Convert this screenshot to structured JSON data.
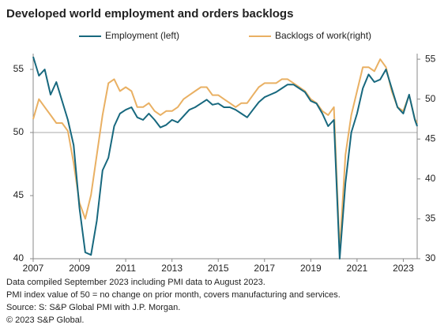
{
  "chart_data": {
    "type": "line",
    "title": "Developed world employment and orders backlogs",
    "notes": [
      "Data compiled September 2023 including PMI data to August 2023.",
      "PMI index value of 50 = no change on prior month, covers manufacturing and services.",
      "Source: S: S&P Global PMI with J.P. Morgan.",
      "© 2023 S&P Global."
    ],
    "x": [
      2007,
      2007.25,
      2007.5,
      2007.75,
      2008,
      2008.25,
      2008.5,
      2008.75,
      2009,
      2009.25,
      2009.5,
      2009.75,
      2010,
      2010.25,
      2010.5,
      2010.75,
      2011,
      2011.25,
      2011.5,
      2011.75,
      2012,
      2012.25,
      2012.5,
      2012.75,
      2013,
      2013.25,
      2013.5,
      2013.75,
      2014,
      2014.25,
      2014.5,
      2014.75,
      2015,
      2015.25,
      2015.5,
      2015.75,
      2016,
      2016.25,
      2016.5,
      2016.75,
      2017,
      2017.25,
      2017.5,
      2017.75,
      2018,
      2018.25,
      2018.5,
      2018.75,
      2019,
      2019.25,
      2019.5,
      2019.75,
      2020,
      2020.25,
      2020.5,
      2020.75,
      2021,
      2021.25,
      2021.5,
      2021.75,
      2022,
      2022.25,
      2022.5,
      2022.75,
      2023,
      2023.25,
      2023.5,
      2023.6
    ],
    "series": [
      {
        "name": "Employment (left)",
        "color": "#17687e",
        "values": [
          56,
          54.5,
          55,
          53,
          54,
          52.5,
          51,
          49,
          44,
          40.5,
          40.3,
          43,
          47,
          48,
          50.5,
          51.5,
          51.8,
          52,
          51.2,
          51,
          51.5,
          51,
          50.4,
          50.6,
          51,
          50.8,
          51.3,
          51.8,
          52,
          52.3,
          52.6,
          52.2,
          52.3,
          52,
          52,
          51.8,
          51.5,
          51.2,
          51.8,
          52.4,
          52.8,
          53,
          53.2,
          53.5,
          53.8,
          53.8,
          53.5,
          53.2,
          52.5,
          52.3,
          51.5,
          50.5,
          51,
          40,
          46,
          50,
          51.5,
          53.5,
          54.6,
          54,
          54.2,
          55,
          53.5,
          52,
          51.5,
          53,
          51,
          50.5
        ]
      },
      {
        "name": "Backlogs of work(right)",
        "color": "#e9b063",
        "axis": "y2",
        "values": [
          47.5,
          50,
          49,
          48,
          47,
          47,
          46,
          42,
          37,
          35,
          38,
          43,
          48,
          52,
          52.5,
          51,
          51.5,
          51,
          49,
          49,
          49.5,
          48.5,
          48,
          48.5,
          48.5,
          49,
          50,
          50.5,
          51,
          51.5,
          51.5,
          50.5,
          50.5,
          50,
          49.5,
          49,
          49.5,
          49.5,
          50.5,
          51.5,
          52,
          52,
          52,
          52.5,
          52.5,
          52,
          51.5,
          51,
          50,
          49.5,
          48.5,
          48,
          49,
          31,
          43,
          48,
          51,
          54,
          54,
          53.5,
          55,
          54,
          51,
          49,
          48.5,
          50.5,
          47.5,
          47
        ]
      }
    ],
    "xlim": [
      2007,
      2023.6
    ],
    "xticks": [
      2007,
      2009,
      2011,
      2013,
      2015,
      2017,
      2019,
      2021,
      2023
    ],
    "ylim": [
      40,
      56.25
    ],
    "yticks": [
      40,
      45,
      50,
      55
    ],
    "y2lim": [
      30,
      55.7
    ],
    "y2ticks": [
      30,
      35,
      40,
      45,
      50,
      55
    ],
    "reference_line": 50
  }
}
